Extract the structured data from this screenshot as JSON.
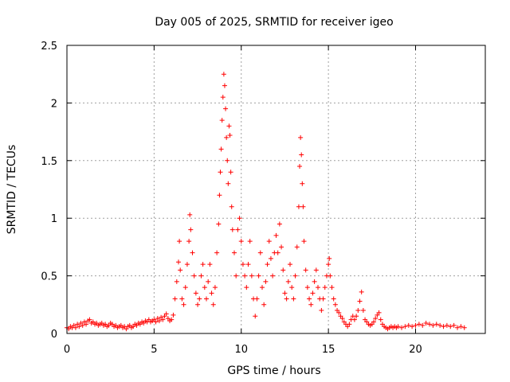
{
  "chart_data": {
    "type": "scatter",
    "title": "Day 005 of 2025, SRMTID for receiver igeo",
    "xlabel": "GPS time / hours",
    "ylabel": "SRMTID / TECUs",
    "xlim": [
      0,
      24
    ],
    "ylim": [
      0,
      2.5
    ],
    "xticks": [
      0,
      5,
      10,
      15,
      20
    ],
    "xtick_labels": [
      "0",
      "5",
      "10",
      "15",
      "20"
    ],
    "yticks": [
      0,
      0.5,
      1,
      1.5,
      2,
      2.5
    ],
    "ytick_labels": [
      "0",
      "0.5",
      "1",
      "1.5",
      "2",
      "2.5"
    ],
    "grid": true,
    "marker": "+",
    "color": "#ff0000",
    "series": [
      {
        "name": "SRMTID",
        "points": [
          [
            0.0,
            0.05
          ],
          [
            0.1,
            0.04
          ],
          [
            0.2,
            0.06
          ],
          [
            0.3,
            0.05
          ],
          [
            0.4,
            0.07
          ],
          [
            0.5,
            0.05
          ],
          [
            0.6,
            0.08
          ],
          [
            0.7,
            0.06
          ],
          [
            0.8,
            0.09
          ],
          [
            0.9,
            0.07
          ],
          [
            1.0,
            0.1
          ],
          [
            1.1,
            0.08
          ],
          [
            1.2,
            0.11
          ],
          [
            1.3,
            0.12
          ],
          [
            1.4,
            0.09
          ],
          [
            1.5,
            0.1
          ],
          [
            1.6,
            0.08
          ],
          [
            1.7,
            0.09
          ],
          [
            1.8,
            0.07
          ],
          [
            1.9,
            0.08
          ],
          [
            2.0,
            0.09
          ],
          [
            2.1,
            0.07
          ],
          [
            2.2,
            0.08
          ],
          [
            2.3,
            0.06
          ],
          [
            2.4,
            0.07
          ],
          [
            2.5,
            0.09
          ],
          [
            2.6,
            0.08
          ],
          [
            2.7,
            0.06
          ],
          [
            2.8,
            0.07
          ],
          [
            2.9,
            0.05
          ],
          [
            3.0,
            0.06
          ],
          [
            3.1,
            0.07
          ],
          [
            3.2,
            0.05
          ],
          [
            3.3,
            0.06
          ],
          [
            3.4,
            0.04
          ],
          [
            3.5,
            0.06
          ],
          [
            3.6,
            0.07
          ],
          [
            3.7,
            0.05
          ],
          [
            3.8,
            0.06
          ],
          [
            3.9,
            0.08
          ],
          [
            4.0,
            0.07
          ],
          [
            4.1,
            0.09
          ],
          [
            4.2,
            0.08
          ],
          [
            4.3,
            0.1
          ],
          [
            4.4,
            0.09
          ],
          [
            4.5,
            0.11
          ],
          [
            4.6,
            0.1
          ],
          [
            4.7,
            0.12
          ],
          [
            4.8,
            0.1
          ],
          [
            4.9,
            0.11
          ],
          [
            5.0,
            0.12
          ],
          [
            5.1,
            0.1
          ],
          [
            5.2,
            0.13
          ],
          [
            5.3,
            0.11
          ],
          [
            5.4,
            0.14
          ],
          [
            5.5,
            0.12
          ],
          [
            5.6,
            0.15
          ],
          [
            5.7,
            0.17
          ],
          [
            5.8,
            0.13
          ],
          [
            5.9,
            0.11
          ],
          [
            6.0,
            0.12
          ],
          [
            6.1,
            0.16
          ],
          [
            6.2,
            0.3
          ],
          [
            6.3,
            0.45
          ],
          [
            6.4,
            0.62
          ],
          [
            6.45,
            0.8
          ],
          [
            6.5,
            0.55
          ],
          [
            6.6,
            0.3
          ],
          [
            6.7,
            0.25
          ],
          [
            6.8,
            0.4
          ],
          [
            6.9,
            0.6
          ],
          [
            7.0,
            0.8
          ],
          [
            7.05,
            1.03
          ],
          [
            7.1,
            0.9
          ],
          [
            7.2,
            0.7
          ],
          [
            7.3,
            0.5
          ],
          [
            7.4,
            0.35
          ],
          [
            7.5,
            0.25
          ],
          [
            7.6,
            0.3
          ],
          [
            7.7,
            0.5
          ],
          [
            7.8,
            0.6
          ],
          [
            7.9,
            0.4
          ],
          [
            8.0,
            0.3
          ],
          [
            8.1,
            0.45
          ],
          [
            8.2,
            0.6
          ],
          [
            8.3,
            0.35
          ],
          [
            8.4,
            0.25
          ],
          [
            8.5,
            0.4
          ],
          [
            8.6,
            0.7
          ],
          [
            8.7,
            0.95
          ],
          [
            8.75,
            1.2
          ],
          [
            8.8,
            1.4
          ],
          [
            8.85,
            1.6
          ],
          [
            8.9,
            1.85
          ],
          [
            8.95,
            2.05
          ],
          [
            9.0,
            2.25
          ],
          [
            9.05,
            2.15
          ],
          [
            9.1,
            1.95
          ],
          [
            9.15,
            1.7
          ],
          [
            9.2,
            1.5
          ],
          [
            9.25,
            1.3
          ],
          [
            9.3,
            1.8
          ],
          [
            9.35,
            1.72
          ],
          [
            9.4,
            1.4
          ],
          [
            9.45,
            1.1
          ],
          [
            9.5,
            0.9
          ],
          [
            9.6,
            0.7
          ],
          [
            9.7,
            0.5
          ],
          [
            9.8,
            0.9
          ],
          [
            9.9,
            1.0
          ],
          [
            10.0,
            0.8
          ],
          [
            10.1,
            0.6
          ],
          [
            10.2,
            0.5
          ],
          [
            10.3,
            0.4
          ],
          [
            10.4,
            0.6
          ],
          [
            10.5,
            0.8
          ],
          [
            10.6,
            0.5
          ],
          [
            10.7,
            0.3
          ],
          [
            10.8,
            0.15
          ],
          [
            10.9,
            0.3
          ],
          [
            11.0,
            0.5
          ],
          [
            11.1,
            0.7
          ],
          [
            11.2,
            0.4
          ],
          [
            11.3,
            0.25
          ],
          [
            11.4,
            0.45
          ],
          [
            11.5,
            0.6
          ],
          [
            11.6,
            0.8
          ],
          [
            11.7,
            0.65
          ],
          [
            11.8,
            0.5
          ],
          [
            11.9,
            0.7
          ],
          [
            12.0,
            0.85
          ],
          [
            12.1,
            0.7
          ],
          [
            12.2,
            0.95
          ],
          [
            12.3,
            0.75
          ],
          [
            12.4,
            0.55
          ],
          [
            12.5,
            0.35
          ],
          [
            12.6,
            0.3
          ],
          [
            12.7,
            0.45
          ],
          [
            12.8,
            0.6
          ],
          [
            12.9,
            0.4
          ],
          [
            13.0,
            0.3
          ],
          [
            13.1,
            0.5
          ],
          [
            13.2,
            0.75
          ],
          [
            13.3,
            1.1
          ],
          [
            13.35,
            1.45
          ],
          [
            13.4,
            1.7
          ],
          [
            13.45,
            1.55
          ],
          [
            13.5,
            1.3
          ],
          [
            13.55,
            1.1
          ],
          [
            13.6,
            0.8
          ],
          [
            13.7,
            0.55
          ],
          [
            13.8,
            0.4
          ],
          [
            13.9,
            0.3
          ],
          [
            14.0,
            0.25
          ],
          [
            14.1,
            0.35
          ],
          [
            14.2,
            0.45
          ],
          [
            14.3,
            0.55
          ],
          [
            14.4,
            0.4
          ],
          [
            14.5,
            0.3
          ],
          [
            14.6,
            0.2
          ],
          [
            14.7,
            0.3
          ],
          [
            14.8,
            0.4
          ],
          [
            14.9,
            0.5
          ],
          [
            15.0,
            0.6
          ],
          [
            15.05,
            0.65
          ],
          [
            15.1,
            0.5
          ],
          [
            15.2,
            0.4
          ],
          [
            15.3,
            0.3
          ],
          [
            15.4,
            0.25
          ],
          [
            15.5,
            0.2
          ],
          [
            15.6,
            0.18
          ],
          [
            15.7,
            0.15
          ],
          [
            15.8,
            0.13
          ],
          [
            15.9,
            0.1
          ],
          [
            16.0,
            0.08
          ],
          [
            16.1,
            0.06
          ],
          [
            16.2,
            0.08
          ],
          [
            16.3,
            0.12
          ],
          [
            16.4,
            0.15
          ],
          [
            16.5,
            0.12
          ],
          [
            16.6,
            0.15
          ],
          [
            16.7,
            0.2
          ],
          [
            16.8,
            0.28
          ],
          [
            16.9,
            0.36
          ],
          [
            17.0,
            0.2
          ],
          [
            17.1,
            0.12
          ],
          [
            17.2,
            0.1
          ],
          [
            17.3,
            0.08
          ],
          [
            17.4,
            0.07
          ],
          [
            17.5,
            0.08
          ],
          [
            17.6,
            0.1
          ],
          [
            17.7,
            0.13
          ],
          [
            17.8,
            0.16
          ],
          [
            17.9,
            0.18
          ],
          [
            18.0,
            0.12
          ],
          [
            18.1,
            0.08
          ],
          [
            18.2,
            0.06
          ],
          [
            18.3,
            0.05
          ],
          [
            18.4,
            0.04
          ],
          [
            18.5,
            0.05
          ],
          [
            18.6,
            0.06
          ],
          [
            18.7,
            0.05
          ],
          [
            18.8,
            0.06
          ],
          [
            18.9,
            0.05
          ],
          [
            19.0,
            0.06
          ],
          [
            19.2,
            0.05
          ],
          [
            19.4,
            0.06
          ],
          [
            19.6,
            0.07
          ],
          [
            19.8,
            0.06
          ],
          [
            20.0,
            0.07
          ],
          [
            20.2,
            0.08
          ],
          [
            20.4,
            0.07
          ],
          [
            20.6,
            0.09
          ],
          [
            20.8,
            0.08
          ],
          [
            21.0,
            0.07
          ],
          [
            21.2,
            0.08
          ],
          [
            21.4,
            0.07
          ],
          [
            21.6,
            0.06
          ],
          [
            21.8,
            0.07
          ],
          [
            22.0,
            0.06
          ],
          [
            22.2,
            0.07
          ],
          [
            22.4,
            0.05
          ],
          [
            22.6,
            0.06
          ],
          [
            22.8,
            0.05
          ]
        ]
      }
    ]
  }
}
